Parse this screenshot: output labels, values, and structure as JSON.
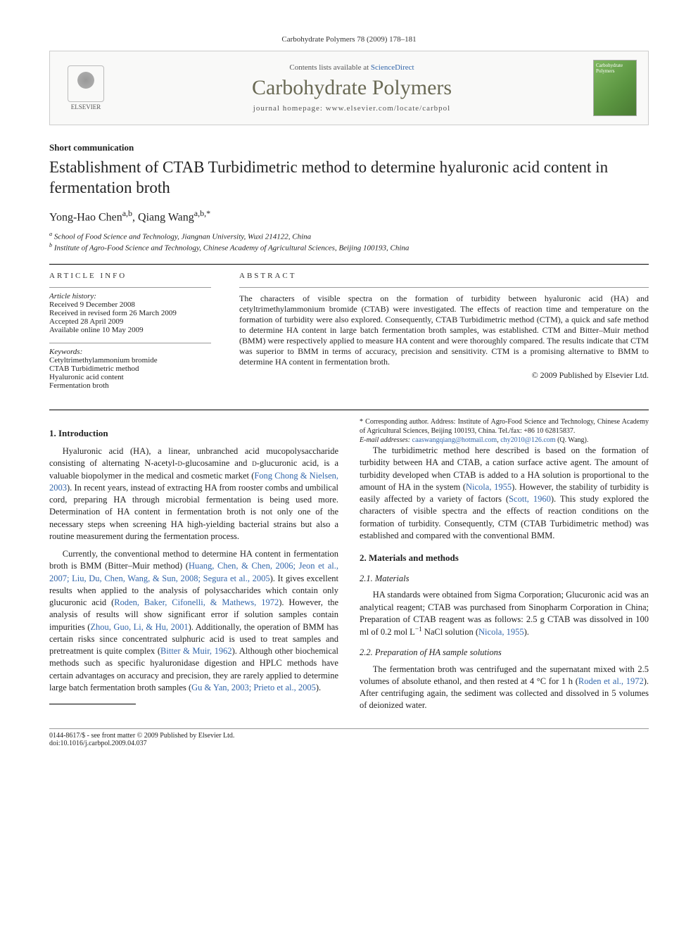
{
  "top_citation": "Carbohydrate Polymers 78 (2009) 178–181",
  "banner": {
    "publisher_name": "ELSEVIER",
    "contents_prefix": "Contents lists available at ",
    "contents_link": "ScienceDirect",
    "journal": "Carbohydrate Polymers",
    "homepage_prefix": "journal homepage: ",
    "homepage_url": "www.elsevier.com/locate/carbpol",
    "cover_text": "Carbohydrate Polymers"
  },
  "article_type": "Short communication",
  "title": "Establishment of CTAB Turbidimetric method to determine hyaluronic acid content in fermentation broth",
  "authors_html": "Yong-Hao Chen",
  "author1_sup": "a,b",
  "author2": ", Qiang Wang",
  "author2_sup": "a,b,*",
  "affiliations": {
    "a": "School of Food Science and Technology, Jiangnan University, Wuxi 214122, China",
    "b": "Institute of Agro-Food Science and Technology, Chinese Academy of Agricultural Sciences, Beijing 100193, China"
  },
  "info": {
    "heading": "article info",
    "history_label": "Article history:",
    "received": "Received 9 December 2008",
    "revised": "Received in revised form 26 March 2009",
    "accepted": "Accepted 28 April 2009",
    "online": "Available online 10 May 2009",
    "keywords_label": "Keywords:",
    "kw1": "Cetyltrimethylammonium bromide",
    "kw2": "CTAB Turbidimetric method",
    "kw3": "Hyaluronic acid content",
    "kw4": "Fermentation broth"
  },
  "abstract": {
    "heading": "abstract",
    "text": "The characters of visible spectra on the formation of turbidity between hyaluronic acid (HA) and cetyltrimethylammonium bromide (CTAB) were investigated. The effects of reaction time and temperature on the formation of turbidity were also explored. Consequently, CTAB Turbidimetric method (CTM), a quick and safe method to determine HA content in large batch fermentation broth samples, was established. CTM and Bitter–Muir method (BMM) were respectively applied to measure HA content and were thoroughly compared. The results indicate that CTM was superior to BMM in terms of accuracy, precision and sensitivity. CTM is a promising alternative to BMM to determine HA content in fermentation broth.",
    "copyright": "© 2009 Published by Elsevier Ltd."
  },
  "sections": {
    "s1": {
      "heading": "1. Introduction",
      "p1a": "Hyaluronic acid (HA), a linear, unbranched acid mucopolysaccharide consisting of alternating N-acetyl-",
      "p1_small1": "d",
      "p1b": "-glucosamine and ",
      "p1_small2": "d",
      "p1c": "-glucuronic acid, is a valuable biopolymer in the medical and cosmetic market (",
      "p1_ref": "Fong Chong & Nielsen, 2003",
      "p1d": "). In recent years, instead of extracting HA from rooster combs and umbilical cord, preparing HA through microbial fermentation is being used more. Determination of HA content in fermentation broth is not only one of the necessary steps when screening HA high-yielding bacterial strains but also a routine measurement during the fermentation process.",
      "p2a": "Currently, the conventional method to determine HA content in fermentation broth is BMM (Bitter–Muir method) (",
      "p2_ref1": "Huang, Chen, & Chen, 2006; Jeon et al., 2007; Liu, Du, Chen, Wang, & Sun, 2008; Segura et al., 2005",
      "p2b": "). It gives excellent results when applied to the analysis of polysaccharides which contain only glucuronic acid (",
      "p2_ref2": "Roden, Baker, Cifonelli, & Mathews, 1972",
      "p2c": "). However, the analysis of results will show significant error if solution samples contain impurities (",
      "p2_ref3": "Zhou, Guo, Li, & Hu, 2001",
      "p2d": "). Additionally, the operation of BMM has certain risks since concentrated sulphuric acid is used to treat samples and pretreatment is quite complex (",
      "p2_ref4": "Bitter & Muir, 1962",
      "p2e": "). Although other biochemical methods such as specific hyaluronidase digestion and HPLC methods have certain advantages on accuracy and precision, they are rarely applied to determine large batch fermentation broth samples (",
      "p2_ref5": "Gu & Yan, 2003; Prieto et al., 2005",
      "p2f": ").",
      "p3a": "The turbidimetric method here described is based on the formation of turbidity between HA and CTAB, a cation surface active agent. The amount of turbidity developed when CTAB is added to a HA solution is proportional to the amount of HA in the system (",
      "p3_ref1": "Nicola, 1955",
      "p3b": "). However, the stability of turbidity is easily affected by a variety of factors (",
      "p3_ref2": "Scott, 1960",
      "p3c": "). This study explored the characters of visible spectra and the effects of reaction conditions on the formation of turbidity. Consequently, CTM (CTAB Turbidimetric method) was established and compared with the conventional BMM."
    },
    "s2": {
      "heading": "2. Materials and methods",
      "s21_heading": "2.1. Materials",
      "s21_p1a": "HA standards were obtained from Sigma Corporation; Glucuronic acid was an analytical reagent; CTAB was purchased from Sinopharm Corporation in China; Preparation of CTAB reagent was as follows: 2.5 g CTAB was dissolved in 100 ml of 0.2 mol L",
      "s21_sup": "−1",
      "s21_p1b": " NaCl solution (",
      "s21_ref": "Nicola, 1955",
      "s21_p1c": ").",
      "s22_heading": "2.2. Preparation of HA sample solutions",
      "s22_p1a": "The fermentation broth was centrifuged and the supernatant mixed with 2.5 volumes of absolute ethanol, and then rested at 4 °C for 1 h (",
      "s22_ref": "Roden et al., 1972",
      "s22_p1b": "). After centrifuging again, the sediment was collected and dissolved in 5 volumes of deionized water."
    }
  },
  "footnote": {
    "corr": "* Corresponding author. Address: Institute of Agro-Food Science and Technology, Chinese Academy of Agricultural Sciences, Beijing 100193, China. Tel./fax: +86 10 62815837.",
    "email_label": "E-mail addresses: ",
    "email1": "caaswangqiang@hotmail.com",
    "email_sep": ", ",
    "email2": "chy2010@126.com",
    "email_tail": " (Q. Wang)."
  },
  "bottom": {
    "left1": "0144-8617/$ - see front matter © 2009 Published by Elsevier Ltd.",
    "left2": "doi:10.1016/j.carbpol.2009.04.037"
  },
  "colors": {
    "link": "#3366aa",
    "text": "#222222",
    "journal_title": "#6a6a55"
  }
}
